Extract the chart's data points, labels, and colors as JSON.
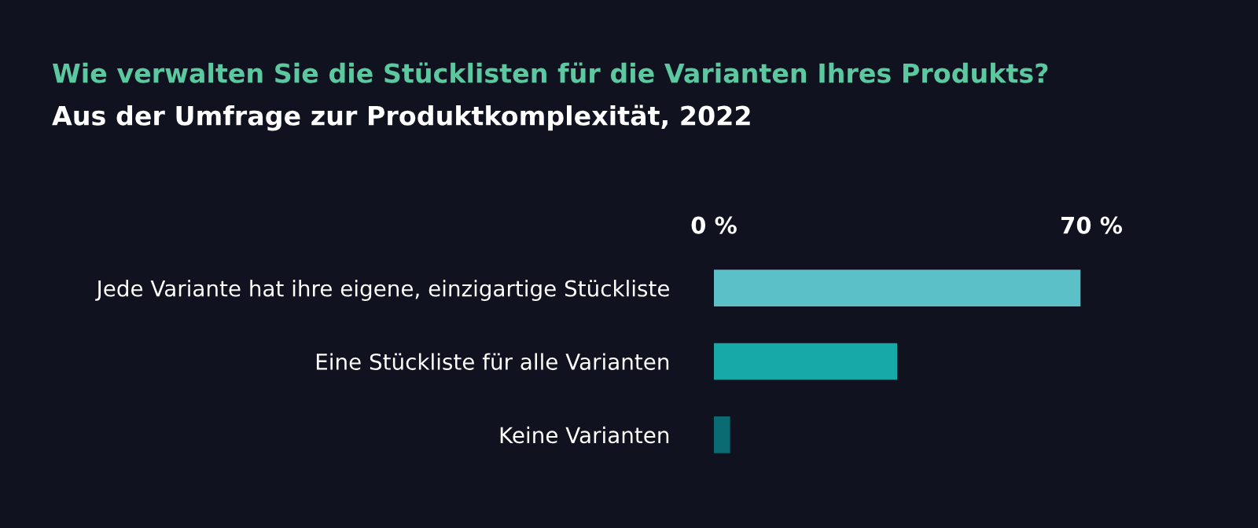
{
  "chart_data": {
    "type": "bar",
    "orientation": "horizontal",
    "title": "Wie verwalten Sie die Stücklisten für die Varianten Ihres Produkts?",
    "subtitle": "Aus der Umfrage zur Produktkomplexität, 2022",
    "categories": [
      "Jede Variante hat ihre eigene, einzigartige Stückliste",
      "Eine Stückliste für alle Varianten",
      "Keine Varianten"
    ],
    "values": [
      68,
      34,
      3
    ],
    "colors": [
      "#5bc0c8",
      "#17a8a8",
      "#0b6b73"
    ],
    "xlim": [
      0,
      70
    ],
    "xticks": [
      {
        "value": 0,
        "label": "0 %"
      },
      {
        "value": 70,
        "label": "70 %"
      }
    ],
    "grid": false
  }
}
